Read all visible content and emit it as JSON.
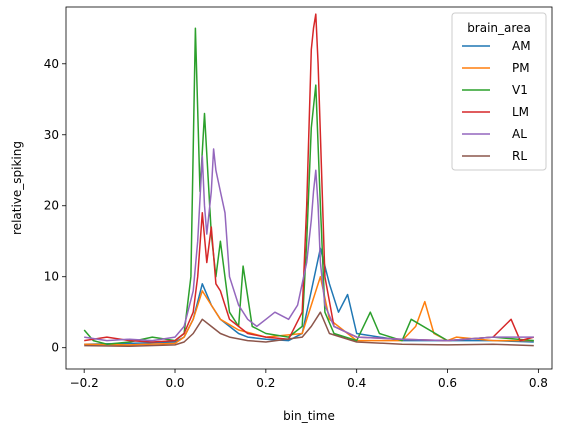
{
  "chart_data": {
    "type": "line",
    "xlabel": "bin_time",
    "ylabel": "relative_spiking",
    "xlim": [
      -0.24,
      0.83
    ],
    "ylim": [
      -3,
      48
    ],
    "xticks": [
      -0.2,
      0.0,
      0.2,
      0.4,
      0.6,
      0.8
    ],
    "xtick_labels": [
      "−0.2",
      "0.0",
      "0.2",
      "0.4",
      "0.6",
      "0.8"
    ],
    "yticks": [
      0,
      10,
      20,
      30,
      40
    ],
    "ytick_labels": [
      "0",
      "10",
      "20",
      "30",
      "40"
    ],
    "grid": false,
    "legend": {
      "title": "brain_area",
      "placement": "top-right"
    },
    "series": [
      {
        "name": "AM",
        "color": "#1f77b4",
        "x": [
          -0.2,
          -0.1,
          0.0,
          0.02,
          0.04,
          0.06,
          0.08,
          0.1,
          0.12,
          0.14,
          0.16,
          0.2,
          0.25,
          0.28,
          0.3,
          0.32,
          0.34,
          0.36,
          0.38,
          0.4,
          0.5,
          0.6,
          0.7,
          0.79
        ],
        "y": [
          0.5,
          0.6,
          0.8,
          1.5,
          4,
          9,
          6,
          4,
          3,
          2,
          1.5,
          1.2,
          1,
          2,
          8,
          14,
          9,
          5,
          7.5,
          2,
          1,
          1,
          1,
          0.8
        ]
      },
      {
        "name": "PM",
        "color": "#ff7f0e",
        "x": [
          -0.2,
          -0.1,
          0.0,
          0.02,
          0.04,
          0.06,
          0.08,
          0.1,
          0.14,
          0.2,
          0.28,
          0.3,
          0.32,
          0.34,
          0.4,
          0.5,
          0.53,
          0.55,
          0.57,
          0.6,
          0.62,
          0.7,
          0.79
        ],
        "y": [
          0.5,
          0.4,
          0.6,
          1.5,
          4,
          8,
          6,
          4,
          2.5,
          1.5,
          2,
          6,
          10,
          4,
          1,
          1,
          3,
          6.5,
          2,
          1,
          1.5,
          1,
          1
        ]
      },
      {
        "name": "V1",
        "color": "#2ca02c",
        "x": [
          -0.2,
          -0.18,
          -0.15,
          -0.1,
          -0.05,
          0.0,
          0.02,
          0.035,
          0.045,
          0.055,
          0.065,
          0.08,
          0.09,
          0.1,
          0.12,
          0.14,
          0.15,
          0.17,
          0.2,
          0.25,
          0.28,
          0.29,
          0.3,
          0.31,
          0.32,
          0.33,
          0.35,
          0.4,
          0.43,
          0.45,
          0.5,
          0.52,
          0.6,
          0.7,
          0.79
        ],
        "y": [
          2.5,
          1,
          0.5,
          0.8,
          1.5,
          1,
          2,
          10,
          45,
          22,
          33,
          16,
          10,
          15,
          5,
          3,
          11.5,
          3,
          2,
          1.5,
          3,
          15,
          31,
          37,
          20,
          5,
          2,
          1,
          5,
          2,
          1,
          4,
          1,
          1.5,
          1
        ]
      },
      {
        "name": "LM",
        "color": "#d62728",
        "x": [
          -0.2,
          -0.15,
          -0.1,
          -0.05,
          0.0,
          0.02,
          0.04,
          0.05,
          0.06,
          0.07,
          0.08,
          0.09,
          0.1,
          0.12,
          0.14,
          0.16,
          0.2,
          0.25,
          0.28,
          0.29,
          0.3,
          0.305,
          0.31,
          0.315,
          0.32,
          0.33,
          0.35,
          0.4,
          0.5,
          0.6,
          0.7,
          0.74,
          0.76,
          0.79
        ],
        "y": [
          1,
          1.5,
          1,
          0.8,
          1,
          2,
          5,
          10,
          19,
          12,
          17,
          9,
          8,
          4,
          3,
          2,
          1.5,
          1.2,
          5,
          20,
          42,
          45,
          47,
          40,
          30,
          10,
          3,
          1.5,
          1.2,
          1,
          1.5,
          4,
          1,
          1.5
        ]
      },
      {
        "name": "AL",
        "color": "#9467bd",
        "x": [
          -0.2,
          -0.15,
          -0.1,
          -0.05,
          0.0,
          0.02,
          0.04,
          0.05,
          0.06,
          0.065,
          0.07,
          0.08,
          0.085,
          0.09,
          0.1,
          0.11,
          0.12,
          0.14,
          0.16,
          0.18,
          0.2,
          0.22,
          0.25,
          0.27,
          0.29,
          0.3,
          0.305,
          0.31,
          0.315,
          0.32,
          0.33,
          0.35,
          0.4,
          0.5,
          0.6,
          0.7,
          0.79
        ],
        "y": [
          1.5,
          1,
          1.2,
          1,
          1.5,
          3,
          8,
          15,
          27,
          20,
          16,
          22,
          28,
          25,
          22,
          19,
          10,
          6,
          4,
          3,
          4,
          5,
          4,
          6,
          12,
          18,
          22,
          25,
          20,
          12,
          6,
          3,
          1.5,
          1.2,
          1,
          1.5,
          1.5
        ]
      },
      {
        "name": "RL",
        "color": "#8c564b",
        "x": [
          -0.2,
          -0.1,
          0.0,
          0.02,
          0.04,
          0.06,
          0.08,
          0.1,
          0.12,
          0.16,
          0.2,
          0.28,
          0.3,
          0.32,
          0.34,
          0.4,
          0.5,
          0.6,
          0.7,
          0.79
        ],
        "y": [
          0.3,
          0.2,
          0.4,
          0.8,
          2,
          4,
          3,
          2,
          1.5,
          1,
          0.8,
          1.5,
          3,
          5,
          2,
          0.8,
          0.5,
          0.4,
          0.5,
          0.3
        ]
      }
    ]
  }
}
